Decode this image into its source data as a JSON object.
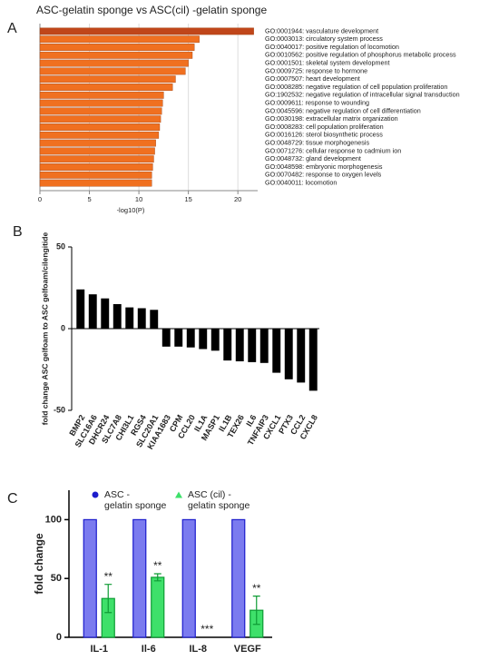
{
  "chart_data": [
    {
      "type": "barh",
      "panel": "A",
      "title": "ASC-gelatin sponge vs ASC(cil) -gelatin sponge",
      "xlabel": "-log10(P)",
      "categories": [
        "GO:0001944: vasculature development",
        "GO:0003013: circulatory system process",
        "GO:0040017: positive regulation of locomotion",
        "GO:0010562: positive regulation of phosphorus metabolic process",
        "GO:0001501: skeletal system development",
        "GO:0009725: response to hormone",
        "GO:0007507: heart development",
        "GO:0008285: negative regulation of cell population proliferation",
        "GO:1902532: negative regulation of intracellular signal transduction",
        "GO:0009611: response to wounding",
        "GO:0045596: negative regulation of cell differentiation",
        "GO:0030198: extracellular matrix organization",
        "GO:0008283: cell population proliferation",
        "GO:0016126: sterol biosynthetic process",
        "GO:0048729: tissue morphogenesis",
        "GO:0071276: cellular response to cadmium ion",
        "GO:0048732: gland development",
        "GO:0048598: embryonic morphogenesis",
        "GO:0070482: response to oxygen levels",
        "GO:0040011: locomotion"
      ],
      "values": [
        21.6,
        16.1,
        15.6,
        15.4,
        15.0,
        14.7,
        13.7,
        13.4,
        12.5,
        12.4,
        12.3,
        12.2,
        12.1,
        12.0,
        11.7,
        11.6,
        11.5,
        11.4,
        11.3,
        11.3
      ],
      "colors": [
        "#c0461a",
        "#f07020",
        "#f07020",
        "#f07020",
        "#f07020",
        "#f07020",
        "#f07020",
        "#f07020",
        "#f07020",
        "#f07020",
        "#f07020",
        "#f07020",
        "#f07020",
        "#f07020",
        "#f07020",
        "#f07020",
        "#f07020",
        "#f07020",
        "#f07020",
        "#f07020"
      ],
      "xlim": [
        0,
        22
      ],
      "xticks": [
        0,
        5,
        10,
        15,
        20
      ],
      "grid": true
    },
    {
      "type": "bar",
      "panel": "B",
      "ylabel": "fold change ASC gelfoam to ASC gelfoam/cilengitide",
      "categories": [
        "BMP2",
        "SLC16A6",
        "DHCR24",
        "SLC7A8",
        "CHI3L1",
        "RGS4",
        "SLC20A1",
        "KIAA1683",
        "CPM",
        "CCL20",
        "IL1A",
        "MASP1",
        "IL1B",
        "TEX26",
        "IL6",
        "TNFAIP3",
        "CXCL1",
        "PTX3",
        "CCL2",
        "CXCL8"
      ],
      "values": [
        24,
        21,
        18.5,
        15,
        13,
        12.5,
        11.5,
        -11,
        -11,
        -11.5,
        -12.5,
        -13.5,
        -19.5,
        -20,
        -20.5,
        -21,
        -27,
        -31,
        -33,
        -38
      ],
      "color": "#000000",
      "ylim": [
        -50,
        50
      ],
      "yticks": [
        -50,
        0,
        50
      ]
    },
    {
      "type": "grouped_bar",
      "panel": "C",
      "ylabel": "fold change",
      "categories": [
        "IL-1",
        "Il-6",
        "IL-8",
        "VEGF"
      ],
      "series": [
        {
          "name": "ASC - gelatin sponge",
          "color": "#7b7bef",
          "stroke": "#1c1ccc",
          "marker": "circle",
          "values": [
            100,
            100,
            100,
            100
          ]
        },
        {
          "name": "ASC (cil) - gelatin sponge",
          "color": "#3ee06a",
          "stroke": "#0e9c34",
          "marker": "triangle",
          "values": [
            33,
            51,
            0,
            23
          ],
          "errors": [
            12,
            3,
            0,
            12
          ]
        }
      ],
      "annotations": [
        "**",
        "**",
        "***",
        "**"
      ],
      "ylim": [
        0,
        125
      ],
      "yticks": [
        0,
        50,
        100
      ]
    }
  ]
}
